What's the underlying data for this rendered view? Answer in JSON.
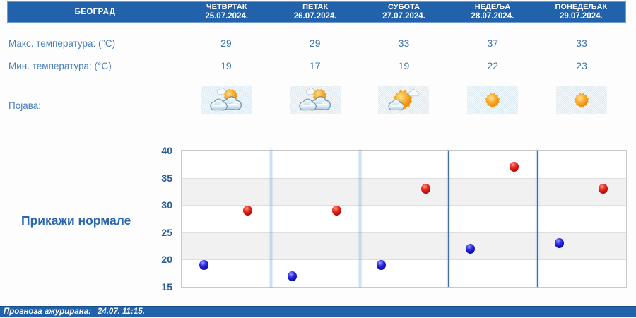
{
  "header": {
    "city": "БЕОГРАД",
    "days": [
      {
        "name": "ЧЕТВРТАК",
        "date": "25.07.2024."
      },
      {
        "name": "ПЕТАК",
        "date": "26.07.2024."
      },
      {
        "name": "СУБОТА",
        "date": "27.07.2024."
      },
      {
        "name": "НЕДЕЉА",
        "date": "28.07.2024."
      },
      {
        "name": "ПОНЕДЕЉАК",
        "date": "29.07.2024."
      }
    ]
  },
  "rows": {
    "max_label": "Макс. температура: (°C)",
    "min_label": "Мин. температура: (°C)",
    "phenomena_label": "Појава:",
    "max_values": [
      29,
      29,
      33,
      37,
      33
    ],
    "min_values": [
      19,
      17,
      19,
      22,
      23
    ],
    "icons": [
      "partly-cloudy",
      "partly-cloudy",
      "mostly-sunny",
      "sunny",
      "sunny"
    ]
  },
  "show_normals_label": "Прикажи нормале",
  "footer": {
    "updated_label": "Прогноза ажурирана:",
    "updated_value": "24.07. 11:15."
  },
  "colors": {
    "header_bg": "#2262ab",
    "label_blue": "#4a80ba",
    "value_blue": "#3f77ae",
    "axis_blue": "#2a5b9a",
    "band_gray": "#f1f1f1",
    "divider_blue": "#3e6f9f",
    "tile_bg": "#e7f0f6",
    "max_dot": "#d71414",
    "min_dot": "#1414c8"
  },
  "chart_data": {
    "type": "scatter",
    "x_categories": [
      "25.07.2024.",
      "26.07.2024.",
      "27.07.2024.",
      "28.07.2024.",
      "29.07.2024."
    ],
    "series": [
      {
        "name": "Макс. температура (°C)",
        "color": "#d71414",
        "values": [
          29,
          29,
          33,
          37,
          33
        ]
      },
      {
        "name": "Мин. температура (°C)",
        "color": "#1414c8",
        "values": [
          19,
          17,
          19,
          22,
          23
        ]
      }
    ],
    "ylim": [
      15,
      40
    ],
    "yticks": [
      40,
      35,
      30,
      25,
      20,
      15
    ],
    "grid": "alternating horizontal gray bands every 5°, blue vertical day dividers",
    "legend": "none"
  }
}
